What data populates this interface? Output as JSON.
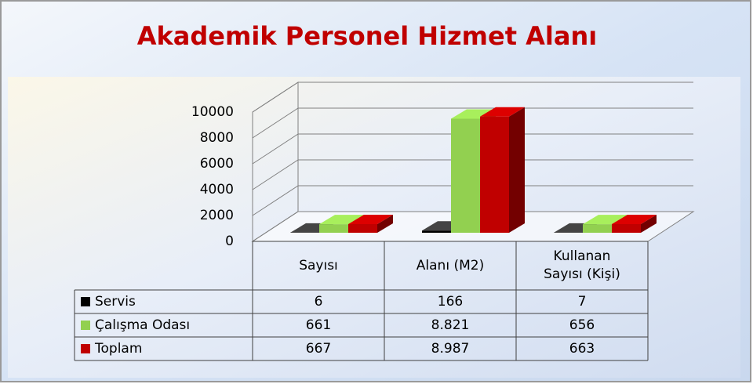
{
  "chart_data": {
    "type": "bar",
    "title": "Akademik Personel Hizmet Alanı",
    "categories": [
      "Sayısı",
      "Alanı (M2)",
      "Kullanan Sayısı (Kişi)"
    ],
    "series": [
      {
        "name": "Servis",
        "color": "#000000",
        "values": [
          6,
          166,
          7
        ]
      },
      {
        "name": "Çalışma Odası",
        "color": "#92d050",
        "values": [
          661,
          8821,
          656
        ],
        "value_labels": [
          "661",
          "8.821",
          "656"
        ]
      },
      {
        "name": "Toplam",
        "color": "#c00000",
        "values": [
          667,
          8987,
          663
        ],
        "value_labels": [
          "667",
          "8.987",
          "663"
        ]
      }
    ],
    "ylim": [
      0,
      10000
    ],
    "yticks": [
      0,
      2000,
      4000,
      6000,
      8000,
      10000
    ],
    "grid": true
  }
}
